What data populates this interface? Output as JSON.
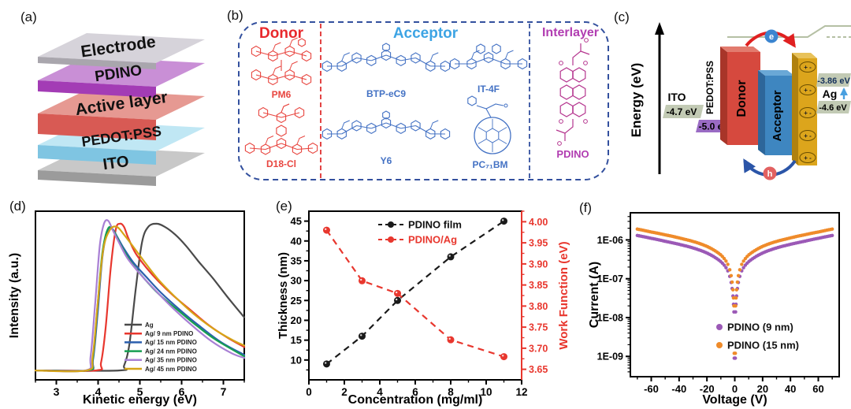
{
  "panel_labels": [
    "(a)",
    "(b)",
    "(c)",
    "(d)",
    "(e)",
    "(f)"
  ],
  "device_stack": {
    "layers": [
      {
        "label": "Electrode",
        "front": "#a9a6ad",
        "top": "#d6d3da",
        "font": 21
      },
      {
        "label": "PDINO",
        "front": "#a33cb5",
        "top": "#c98fd6",
        "font": 19
      },
      {
        "label": "Active layer",
        "front": "#d85a54",
        "top": "#e69992",
        "font": 21
      },
      {
        "label": "PEDOT:PSS",
        "front": "#7fc5e2",
        "top": "#c0e7f4",
        "font": 18
      },
      {
        "label": "ITO",
        "front": "#9b9b9b",
        "top": "#c8c8c8",
        "font": 20
      }
    ]
  },
  "materials": {
    "border_color": "#33509e",
    "sections": [
      {
        "title": "Donor",
        "title_color": "#e8282c",
        "structure_color": "#e8453f",
        "molecules": [
          {
            "name": "PM6"
          },
          {
            "name": "D18-Cl"
          }
        ]
      },
      {
        "title": "Acceptor",
        "title_color": "#3da4e4",
        "structure_color": "#4472c4",
        "molecules": [
          {
            "name": "BTP-eC9"
          },
          {
            "name": "Y6"
          },
          {
            "name": "IT-4F"
          },
          {
            "name": "PC₇₁BM"
          }
        ]
      },
      {
        "title": "Interlayer",
        "title_color": "#b13db1",
        "structure_color": "#b5368f",
        "molecules": [
          {
            "name": "PDINO"
          }
        ]
      }
    ]
  },
  "energy_diagram": {
    "axis_label": "Energy (eV)",
    "ito_label": "ITO",
    "ito_value": "-4.7 eV",
    "pedot_label": "PEDOT:PSS",
    "pedot_value": "-5.0 eV",
    "donor_label": "Donor",
    "acceptor_label": "Acceptor",
    "ag_modified_value": "-3.86 eV",
    "ag_label": "Ag",
    "ag_value": "-4.6 eV",
    "electron_symbol": "e",
    "hole_symbol": "h",
    "dipole_symbol": "+  -",
    "colors": {
      "donor": "#d6493e",
      "donor_top": "#e27b6e",
      "donor_side": "#a83529",
      "acceptor": "#3e86c0",
      "acceptor_top": "#6aa8d6",
      "acceptor_side": "#2d669a",
      "interlayer": "#dca51c",
      "interlayer_top": "#e8c25a",
      "interlayer_side": "#b0810e",
      "level_bar": "#c2cab4",
      "pedot_bar": "#9a6bc4",
      "vacuum_line": "#b5c0a4",
      "electron_arrow": "#e02020",
      "hole_arrow": "#2b55a8",
      "electron_ball": "#3b85d0",
      "hole_ball": "#e26161",
      "ag_arrow": "#4aa0e0"
    }
  },
  "chart_data": [
    {
      "id": "d",
      "type": "line",
      "xlabel": "Kinetic energy (eV)",
      "ylabel": "Intensity (a.u.)",
      "xlim": [
        2.5,
        7.5
      ],
      "xticks": [
        "3",
        "4",
        "5",
        "6",
        "7"
      ],
      "xminor_step": 0.5,
      "ylim": [
        0,
        1.08
      ],
      "grid": false,
      "legend_position": "inside-right-bottom",
      "series": [
        {
          "name": "Ag",
          "color": "#4a4a4a",
          "points": [
            [
              2.5,
              0.03
            ],
            [
              4.5,
              0.03
            ],
            [
              4.62,
              0.06
            ],
            [
              4.75,
              0.2
            ],
            [
              4.9,
              0.55
            ],
            [
              5.05,
              0.85
            ],
            [
              5.2,
              0.95
            ],
            [
              5.4,
              0.97
            ],
            [
              5.6,
              0.95
            ],
            [
              5.85,
              0.9
            ],
            [
              6.1,
              0.83
            ],
            [
              6.4,
              0.73
            ],
            [
              6.75,
              0.62
            ],
            [
              7.1,
              0.5
            ],
            [
              7.5,
              0.37
            ]
          ]
        },
        {
          "name": "Ag/ 9 nm  PDINO",
          "color": "#e8372e",
          "points": [
            [
              2.5,
              0.03
            ],
            [
              3.95,
              0.03
            ],
            [
              4.07,
              0.08
            ],
            [
              4.18,
              0.3
            ],
            [
              4.3,
              0.68
            ],
            [
              4.42,
              0.93
            ],
            [
              4.52,
              0.97
            ],
            [
              4.62,
              0.95
            ],
            [
              4.72,
              0.88
            ],
            [
              4.9,
              0.78
            ],
            [
              5.15,
              0.69
            ],
            [
              5.45,
              0.6
            ],
            [
              5.8,
              0.51
            ],
            [
              6.2,
              0.42
            ],
            [
              6.65,
              0.32
            ],
            [
              7.1,
              0.24
            ],
            [
              7.5,
              0.18
            ]
          ]
        },
        {
          "name": "Ag/ 15 nm PDINO",
          "color": "#2b5fae",
          "points": [
            [
              2.5,
              0.03
            ],
            [
              3.76,
              0.03
            ],
            [
              3.88,
              0.1
            ],
            [
              3.99,
              0.4
            ],
            [
              4.1,
              0.75
            ],
            [
              4.22,
              0.92
            ],
            [
              4.33,
              0.94
            ],
            [
              4.45,
              0.89
            ],
            [
              4.62,
              0.81
            ],
            [
              4.85,
              0.72
            ],
            [
              5.15,
              0.63
            ],
            [
              5.5,
              0.53
            ],
            [
              5.95,
              0.42
            ],
            [
              6.45,
              0.31
            ],
            [
              6.95,
              0.21
            ],
            [
              7.5,
              0.13
            ]
          ]
        },
        {
          "name": "Ag/ 24 nm PDINO",
          "color": "#179e52",
          "points": [
            [
              2.5,
              0.03
            ],
            [
              3.75,
              0.03
            ],
            [
              3.87,
              0.1
            ],
            [
              3.98,
              0.42
            ],
            [
              4.1,
              0.78
            ],
            [
              4.24,
              0.94
            ],
            [
              4.38,
              0.92
            ],
            [
              4.55,
              0.83
            ],
            [
              4.8,
              0.72
            ],
            [
              5.1,
              0.62
            ],
            [
              5.45,
              0.52
            ],
            [
              5.85,
              0.43
            ],
            [
              6.3,
              0.33
            ],
            [
              6.8,
              0.23
            ],
            [
              7.5,
              0.12
            ]
          ]
        },
        {
          "name": "Ag/ 35 nm PDINO",
          "color": "#a87fd4",
          "points": [
            [
              2.5,
              0.03
            ],
            [
              3.7,
              0.03
            ],
            [
              3.82,
              0.12
            ],
            [
              3.93,
              0.46
            ],
            [
              4.04,
              0.83
            ],
            [
              4.14,
              0.97
            ],
            [
              4.24,
              0.99
            ],
            [
              4.35,
              0.93
            ],
            [
              4.5,
              0.85
            ],
            [
              4.7,
              0.75
            ],
            [
              5.0,
              0.65
            ],
            [
              5.35,
              0.55
            ],
            [
              5.75,
              0.44
            ],
            [
              6.2,
              0.33
            ],
            [
              6.7,
              0.22
            ],
            [
              7.2,
              0.14
            ],
            [
              7.5,
              0.11
            ]
          ]
        },
        {
          "name": "Ag/ 45 nm PDINO",
          "color": "#d6a417",
          "points": [
            [
              2.5,
              0.03
            ],
            [
              3.73,
              0.03
            ],
            [
              3.87,
              0.12
            ],
            [
              3.99,
              0.46
            ],
            [
              4.12,
              0.8
            ],
            [
              4.28,
              0.93
            ],
            [
              4.45,
              0.95
            ],
            [
              4.62,
              0.9
            ],
            [
              4.85,
              0.82
            ],
            [
              5.1,
              0.73
            ],
            [
              5.45,
              0.61
            ],
            [
              5.85,
              0.5
            ],
            [
              6.3,
              0.39
            ],
            [
              6.8,
              0.29
            ],
            [
              7.25,
              0.22
            ],
            [
              7.5,
              0.19
            ]
          ]
        }
      ]
    },
    {
      "id": "e",
      "type": "scatter-line-dual-axis",
      "xlabel": "Concentration (mg/ml)",
      "ylabel_left": "Thickness (nm)",
      "ylabel_right": "Work Function (eV)",
      "xlim": [
        0,
        12
      ],
      "xticks": [
        "0",
        "2",
        "4",
        "6",
        "8",
        "10",
        "12"
      ],
      "xminor_step": 1,
      "ylim_left": [
        5,
        47.5
      ],
      "yticks_left": [
        "10",
        "15",
        "20",
        "25",
        "30",
        "35",
        "40",
        "45"
      ],
      "yminor_left": 2.5,
      "ylim_right": [
        3.625,
        4.025
      ],
      "yticks_right": [
        "3.65",
        "3.70",
        "3.75",
        "3.80",
        "3.85",
        "3.90",
        "3.95",
        "4.00"
      ],
      "yminor_right": 0.025,
      "right_axis_color": "#e8372e",
      "series": [
        {
          "name": "PDINO film",
          "axis": "left",
          "color": "#1a1a1a",
          "x": [
            1,
            3,
            5,
            8,
            11
          ],
          "y": [
            9,
            16,
            25,
            36,
            45
          ]
        },
        {
          "name": "PDINO/Ag",
          "axis": "right",
          "color": "#e8372e",
          "x": [
            1,
            3,
            5,
            8,
            11
          ],
          "y": [
            3.98,
            3.86,
            3.83,
            3.72,
            3.68
          ]
        }
      ]
    },
    {
      "id": "f",
      "type": "scatter",
      "xlabel": "Voltage (V)",
      "ylabel": "Current (A)",
      "xlim": [
        -75,
        75
      ],
      "xticks": [
        "-60",
        "-40",
        "-20",
        "0",
        "20",
        "40",
        "60"
      ],
      "xminor_step": 10,
      "ylog_lim": [
        3e-10,
        5e-06
      ],
      "yticks": [
        "1E-09",
        "1E-08",
        "1E-07",
        "1E-06"
      ],
      "series": [
        {
          "name": "PDINO (9 nm)",
          "color": "#9b59b6",
          "anchors": [
            [
              0.4,
              9e-10
            ],
            [
              0.6,
              1.4e-08
            ],
            [
              0.9,
              2.2e-08
            ],
            [
              1.3,
              3.6e-08
            ],
            [
              1.9,
              5.6e-08
            ],
            [
              2.6,
              8e-08
            ],
            [
              3.6,
              1.15e-07
            ],
            [
              5,
              1.6e-07
            ],
            [
              7,
              2.1e-07
            ],
            [
              10,
              2.75e-07
            ],
            [
              14,
              3.5e-07
            ],
            [
              20,
              4.6e-07
            ],
            [
              28,
              5.9e-07
            ],
            [
              38,
              7.4e-07
            ],
            [
              50,
              9.2e-07
            ],
            [
              60,
              1.1e-06
            ],
            [
              70,
              1.3e-06
            ]
          ]
        },
        {
          "name": "PDINO (15 nm)",
          "color": "#ef8b2a",
          "anchors": [
            [
              0.4,
              1.2e-09
            ],
            [
              0.6,
              2e-08
            ],
            [
              0.9,
              3.2e-08
            ],
            [
              1.3,
              5.2e-08
            ],
            [
              1.9,
              8.2e-08
            ],
            [
              2.6,
              1.2e-07
            ],
            [
              3.6,
              1.7e-07
            ],
            [
              5,
              2.35e-07
            ],
            [
              7,
              3.1e-07
            ],
            [
              10,
              4.1e-07
            ],
            [
              14,
              5.2e-07
            ],
            [
              20,
              6.8e-07
            ],
            [
              28,
              8.7e-07
            ],
            [
              38,
              1.08e-06
            ],
            [
              50,
              1.35e-06
            ],
            [
              60,
              1.6e-06
            ],
            [
              70,
              1.9e-06
            ]
          ]
        }
      ]
    }
  ]
}
